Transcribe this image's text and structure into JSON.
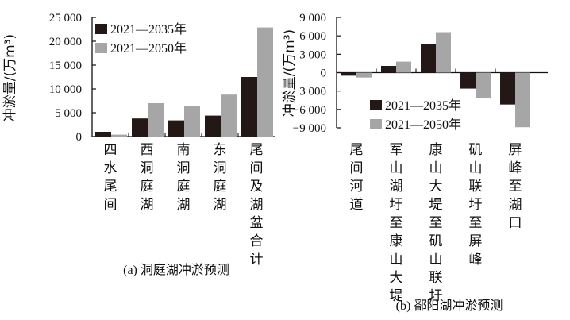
{
  "colors": {
    "series_2035": "#231815",
    "series_2050": "#a6a6a6",
    "axis": "#111111"
  },
  "chart_data": [
    {
      "type": "bar",
      "caption": "(a) 洞庭湖冲淤预测",
      "ylabel": "冲淤量/(万m³)",
      "ylim": [
        0,
        25000
      ],
      "yticks": [
        0,
        5000,
        10000,
        15000,
        20000,
        25000
      ],
      "ytick_labels": [
        "0",
        "5 000",
        "10 000",
        "15 000",
        "20 000",
        "25 000"
      ],
      "legend_position": "top-left",
      "categories": [
        "四水尾间",
        "西洞庭湖",
        "南洞庭湖",
        "东洞庭湖",
        "尾间及湖盆合计"
      ],
      "series": [
        {
          "name": "2021—2035年",
          "values": [
            1000,
            3800,
            3400,
            4400,
            12500
          ]
        },
        {
          "name": "2021—2050年",
          "values": [
            400,
            7000,
            6500,
            8800,
            22900
          ]
        }
      ]
    },
    {
      "type": "bar",
      "caption": "(b) 鄱阳湖冲淤预测",
      "ylabel": "冲淤量/(万m³)",
      "ylim": [
        -9000,
        9000
      ],
      "yticks": [
        -9000,
        -6000,
        -3000,
        0,
        3000,
        6000,
        9000
      ],
      "ytick_labels": [
        "−9 000",
        "−6 000",
        "−3 000",
        "0",
        "3 000",
        "6 000",
        "9 000"
      ],
      "legend_position": "bottom-left",
      "categories": [
        "尾间河道",
        "军山湖圩至康山大堤",
        "康山大堤至矶山联圩",
        "矶山联圩至屏峰",
        "屏峰至湖口"
      ],
      "series": [
        {
          "name": "2021—2035年",
          "values": [
            -500,
            1100,
            4600,
            -2600,
            -5200
          ]
        },
        {
          "name": "2021—2050年",
          "values": [
            -800,
            1800,
            6600,
            -4100,
            -8900
          ]
        }
      ]
    }
  ]
}
